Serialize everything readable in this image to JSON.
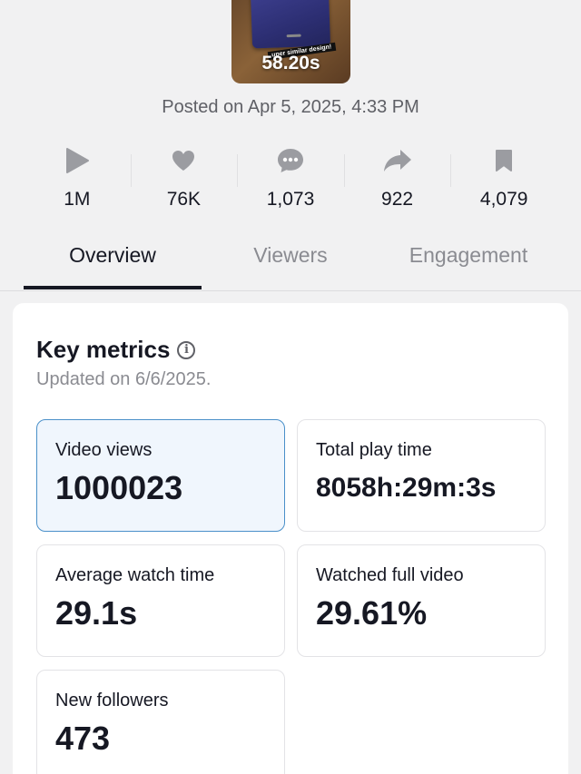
{
  "video": {
    "duration": "58.20s",
    "caption": "uper similar design!",
    "posted": "Posted on Apr 5, 2025, 4:33 PM"
  },
  "stats": {
    "views": "1M",
    "likes": "76K",
    "comments": "1,073",
    "shares": "922",
    "saves": "4,079"
  },
  "tabs": [
    {
      "label": "Overview"
    },
    {
      "label": "Viewers"
    },
    {
      "label": "Engagement"
    }
  ],
  "key_metrics": {
    "title": "Key metrics",
    "updated": "Updated on 6/6/2025.",
    "items": [
      {
        "label": "Video views",
        "value": "1000023"
      },
      {
        "label": "Total play time",
        "value": "8058h:29m:3s"
      },
      {
        "label": "Average watch time",
        "value": "29.1s"
      },
      {
        "label": "Watched full video",
        "value": "29.61%"
      },
      {
        "label": "New followers",
        "value": "473"
      }
    ]
  },
  "colors": {
    "icon_gray": "#9b9ca1",
    "selected_bg": "#f0f6fd",
    "selected_border": "#4a90c9"
  }
}
